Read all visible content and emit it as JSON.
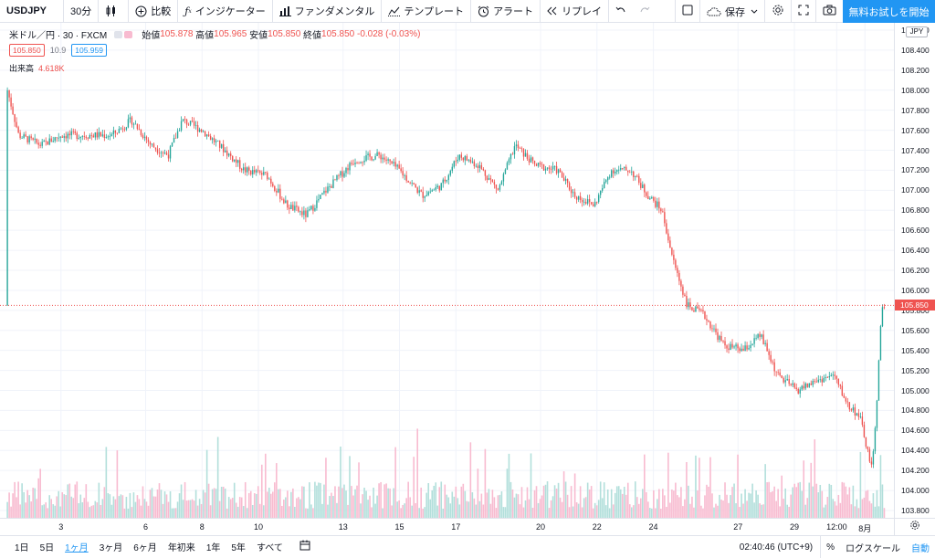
{
  "toolbar": {
    "symbol": "USDJPY",
    "interval": "30分",
    "compare": "比較",
    "indicators": "インジケーター",
    "fundamentals": "ファンダメンタル",
    "templates": "テンプレート",
    "alert": "アラート",
    "replay": "リプレイ",
    "save": "保存",
    "cta": "無料お試しを開始"
  },
  "legend": {
    "title": "米ドル／円 · 30 · FXCM",
    "open_label": "始値",
    "open": "105.878",
    "high_label": "高値",
    "high": "105.965",
    "low_label": "安値",
    "low": "105.850",
    "close_label": "終値",
    "close": "105.850",
    "change": "-0.028 (-0.03%)",
    "bid": "105.850",
    "spread": "10.9",
    "ask": "105.959",
    "volume_label": "出来高",
    "volume": "4.618K"
  },
  "price_axis": {
    "currency": "JPY",
    "ticks": [
      "108.600",
      "108.400",
      "108.200",
      "108.000",
      "107.800",
      "107.600",
      "107.400",
      "107.200",
      "107.000",
      "106.800",
      "106.600",
      "106.400",
      "106.200",
      "106.000",
      "105.800",
      "105.600",
      "105.400",
      "105.200",
      "105.000",
      "104.800",
      "104.600",
      "104.400",
      "104.200",
      "104.000",
      "103.800"
    ],
    "current_price": "105.850",
    "current_label": "105.850"
  },
  "time_axis": {
    "ticks": [
      {
        "label": "3",
        "day": 3
      },
      {
        "label": "6",
        "day": 6
      },
      {
        "label": "8",
        "day": 8
      },
      {
        "label": "10",
        "day": 10
      },
      {
        "label": "13",
        "day": 13
      },
      {
        "label": "15",
        "day": 15
      },
      {
        "label": "17",
        "day": 17
      },
      {
        "label": "20",
        "day": 20
      },
      {
        "label": "22",
        "day": 22
      },
      {
        "label": "24",
        "day": 24
      },
      {
        "label": "27",
        "day": 27
      },
      {
        "label": "29",
        "day": 29
      },
      {
        "label": "12:00",
        "day": 30.5
      },
      {
        "label": "8月",
        "day": 31.5
      }
    ]
  },
  "chart_data": {
    "type": "candlestick",
    "symbol": "USDJPY",
    "interval": "30",
    "y_range": [
      103.8,
      108.6
    ],
    "price_path": [
      {
        "day": 1.1,
        "price": 108.0
      },
      {
        "day": 1.5,
        "price": 107.55
      },
      {
        "day": 2.3,
        "price": 107.45
      },
      {
        "day": 3.0,
        "price": 107.55
      },
      {
        "day": 4.0,
        "price": 107.55
      },
      {
        "day": 4.8,
        "price": 107.55
      },
      {
        "day": 5.5,
        "price": 107.7
      },
      {
        "day": 6.2,
        "price": 107.45
      },
      {
        "day": 6.8,
        "price": 107.35
      },
      {
        "day": 7.3,
        "price": 107.7
      },
      {
        "day": 8.0,
        "price": 107.6
      },
      {
        "day": 8.8,
        "price": 107.4
      },
      {
        "day": 9.5,
        "price": 107.2
      },
      {
        "day": 10.3,
        "price": 107.15
      },
      {
        "day": 11.0,
        "price": 106.85
      },
      {
        "day": 11.7,
        "price": 106.75
      },
      {
        "day": 12.4,
        "price": 107.0
      },
      {
        "day": 13.4,
        "price": 107.3
      },
      {
        "day": 14.3,
        "price": 107.35
      },
      {
        "day": 15.0,
        "price": 107.2
      },
      {
        "day": 15.8,
        "price": 106.95
      },
      {
        "day": 16.5,
        "price": 107.05
      },
      {
        "day": 17.1,
        "price": 107.35
      },
      {
        "day": 17.8,
        "price": 107.25
      },
      {
        "day": 18.5,
        "price": 107.0
      },
      {
        "day": 19.1,
        "price": 107.45
      },
      {
        "day": 19.8,
        "price": 107.25
      },
      {
        "day": 20.6,
        "price": 107.2
      },
      {
        "day": 21.2,
        "price": 106.95
      },
      {
        "day": 21.9,
        "price": 106.85
      },
      {
        "day": 22.5,
        "price": 107.2
      },
      {
        "day": 23.2,
        "price": 107.2
      },
      {
        "day": 23.8,
        "price": 106.95
      },
      {
        "day": 24.3,
        "price": 106.8
      },
      {
        "day": 24.7,
        "price": 106.3
      },
      {
        "day": 25.2,
        "price": 105.85
      },
      {
        "day": 25.8,
        "price": 105.75
      },
      {
        "day": 26.5,
        "price": 105.45
      },
      {
        "day": 27.2,
        "price": 105.4
      },
      {
        "day": 27.8,
        "price": 105.55
      },
      {
        "day": 28.4,
        "price": 105.15
      },
      {
        "day": 29.1,
        "price": 105.0
      },
      {
        "day": 29.8,
        "price": 105.1
      },
      {
        "day": 30.4,
        "price": 105.15
      },
      {
        "day": 30.9,
        "price": 104.85
      },
      {
        "day": 31.3,
        "price": 104.75
      },
      {
        "day": 31.55,
        "price": 104.45
      },
      {
        "day": 31.75,
        "price": 104.2
      },
      {
        "day": 31.9,
        "price": 104.75
      },
      {
        "day": 32.0,
        "price": 105.4
      },
      {
        "day": 32.1,
        "price": 105.8
      },
      {
        "day": 32.2,
        "price": 105.85
      }
    ],
    "up_color": "#26a69a",
    "down_color": "#ef5350",
    "volume_up_color": "#b2dfdb",
    "volume_down_color": "#f8bbd0",
    "grid": true
  }
}
